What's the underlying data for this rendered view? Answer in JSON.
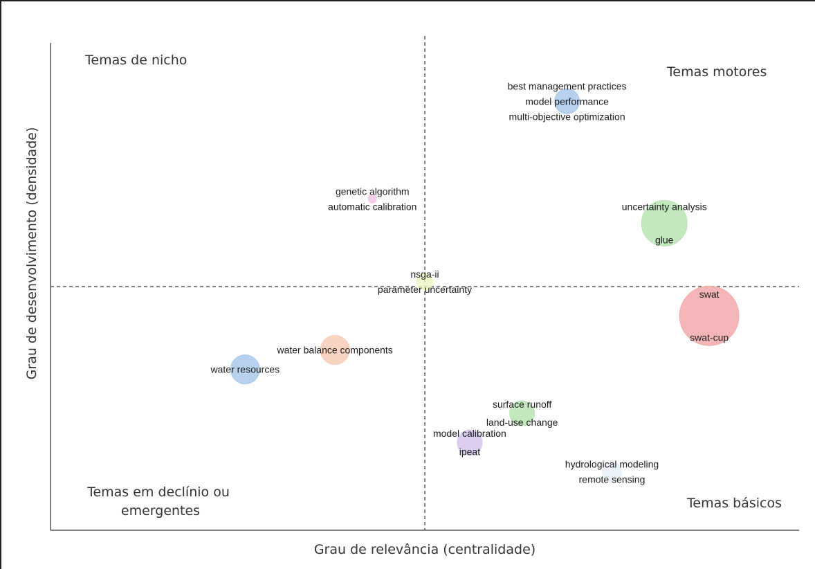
{
  "chart_data": {
    "type": "scatter",
    "title": "",
    "xlabel": "Grau de relevância (centralidade)",
    "ylabel": "Grau de desenvolvimento (densidade)",
    "xlim": [
      0,
      100
    ],
    "ylim": [
      0,
      100
    ],
    "grid": false,
    "divider_x": 50,
    "divider_y": 50,
    "quadrants": [
      {
        "id": "nicho",
        "lines": [
          "Temas de nicho"
        ]
      },
      {
        "id": "motores",
        "lines": [
          "Temas motores"
        ]
      },
      {
        "id": "declinio",
        "lines": [
          "Temas em declínio ou",
          "emergentes"
        ]
      },
      {
        "id": "basicos",
        "lines": [
          "Temas básicos"
        ]
      }
    ],
    "clusters": [
      {
        "name": "best management practices",
        "x": 69,
        "y": 88,
        "size": 18,
        "color": "#a9c8ea",
        "labels": [
          "best management practices",
          "model performance",
          "multi-objective optimization"
        ]
      },
      {
        "name": "genetic algorithm",
        "x": 43,
        "y": 68,
        "size": 6,
        "color": "#f3c6e8",
        "labels": [
          "genetic algorithm",
          "automatic calibration"
        ]
      },
      {
        "name": "uncertainty analysis",
        "x": 82,
        "y": 63,
        "size": 33,
        "color": "#b9e3b3",
        "labels": [
          "uncertainty analysis",
          "glue"
        ]
      },
      {
        "name": "nsga-ii",
        "x": 50,
        "y": 51,
        "size": 12,
        "color": "#eef5c4",
        "labels": [
          "nsga-ii",
          "parameter uncertainty"
        ]
      },
      {
        "name": "swat",
        "x": 88,
        "y": 44,
        "size": 43,
        "color": "#f2a9a9",
        "labels": [
          "swat",
          "swat-cup"
        ]
      },
      {
        "name": "water balance components",
        "x": 38,
        "y": 37,
        "size": 21,
        "color": "#f9cdb8",
        "labels": [
          "water balance components"
        ]
      },
      {
        "name": "water resources",
        "x": 26,
        "y": 33,
        "size": 21,
        "color": "#a9c8ea",
        "labels": [
          "water resources"
        ]
      },
      {
        "name": "surface runoff",
        "x": 63,
        "y": 24,
        "size": 18,
        "color": "#b9e3b3",
        "labels": [
          "surface runoff",
          "land-use change"
        ]
      },
      {
        "name": "model calibration",
        "x": 56,
        "y": 18,
        "size": 18,
        "color": "#d5c4ec",
        "labels": [
          "model calibration",
          "ipeat"
        ]
      },
      {
        "name": "hydrological modeling",
        "x": 75,
        "y": 12,
        "size": 14,
        "color": "#e6eef7",
        "labels": [
          "hydrological modeling",
          "remote sensing"
        ]
      }
    ]
  }
}
